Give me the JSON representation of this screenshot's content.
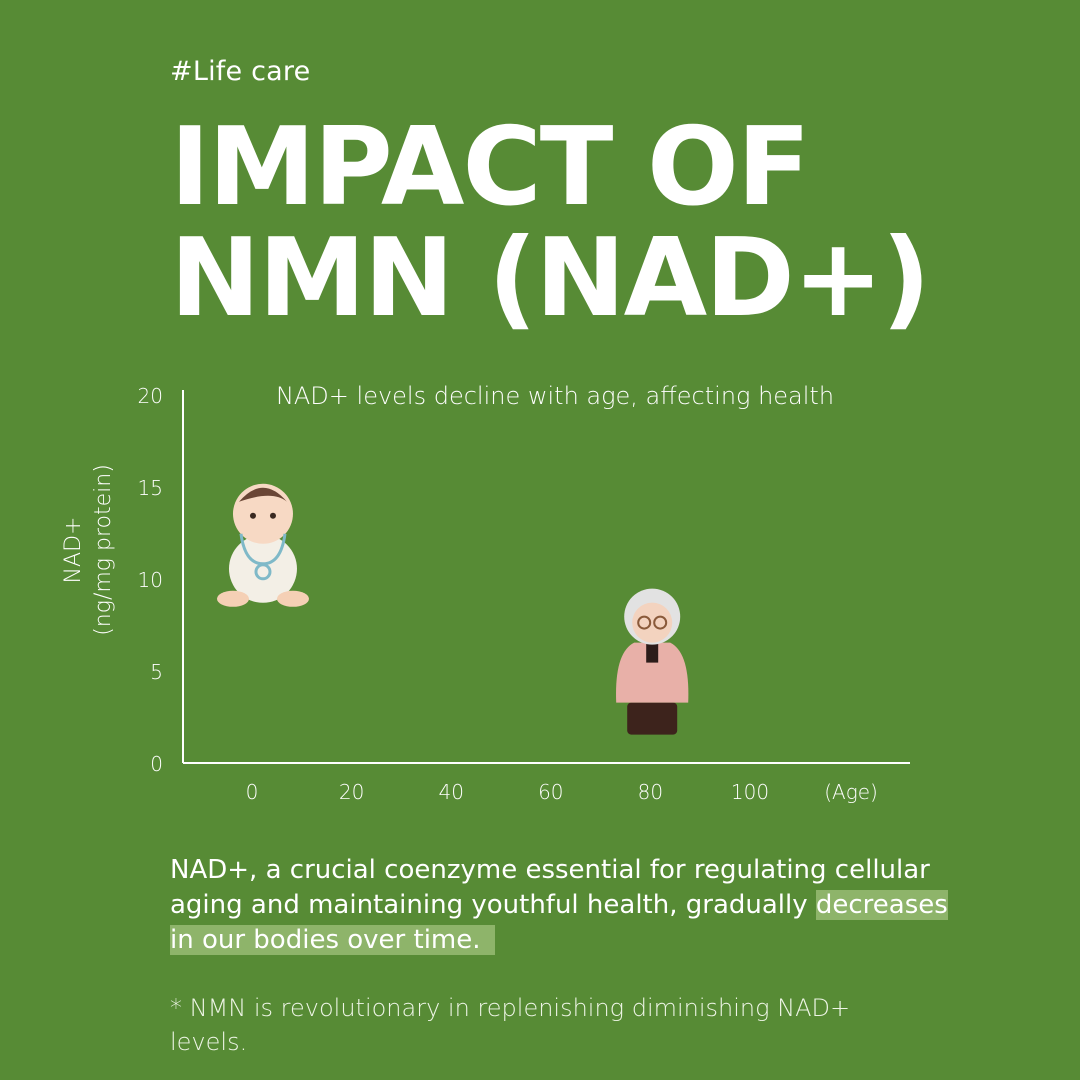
{
  "header": {
    "tag": "#Life care",
    "title_line1": "IMPACT OF",
    "title_line2": "NMN (NAD+)"
  },
  "chart_data": {
    "type": "scatter",
    "title": "NAD+ levels decline with age, affecting health",
    "ylabel_line1": "NAD+",
    "ylabel_line2": "(ng/mg protein)",
    "xlabel": "(Age)",
    "x_ticks": [
      "0",
      "20",
      "40",
      "60",
      "80",
      "100"
    ],
    "y_ticks": [
      "0",
      "5",
      "10",
      "15",
      "20"
    ],
    "xlim": [
      0,
      100
    ],
    "ylim": [
      0,
      20
    ],
    "grid": false,
    "points": [
      {
        "name": "baby-figure",
        "x": 1,
        "y": 13
      },
      {
        "name": "elderly-figure",
        "x": 90,
        "y": 6
      }
    ]
  },
  "body": {
    "desc_part1": "NAD+, a crucial coenzyme essential for regulating cellular aging and maintaining youthful health, gradually ",
    "desc_highlight": "decreases in our bodies over time.",
    "note": "* NMN is revolutionary in replenishing diminishing NAD+ levels."
  },
  "colors": {
    "background": "#578b35",
    "text": "#ffffff",
    "highlight": "#bcd49c"
  }
}
